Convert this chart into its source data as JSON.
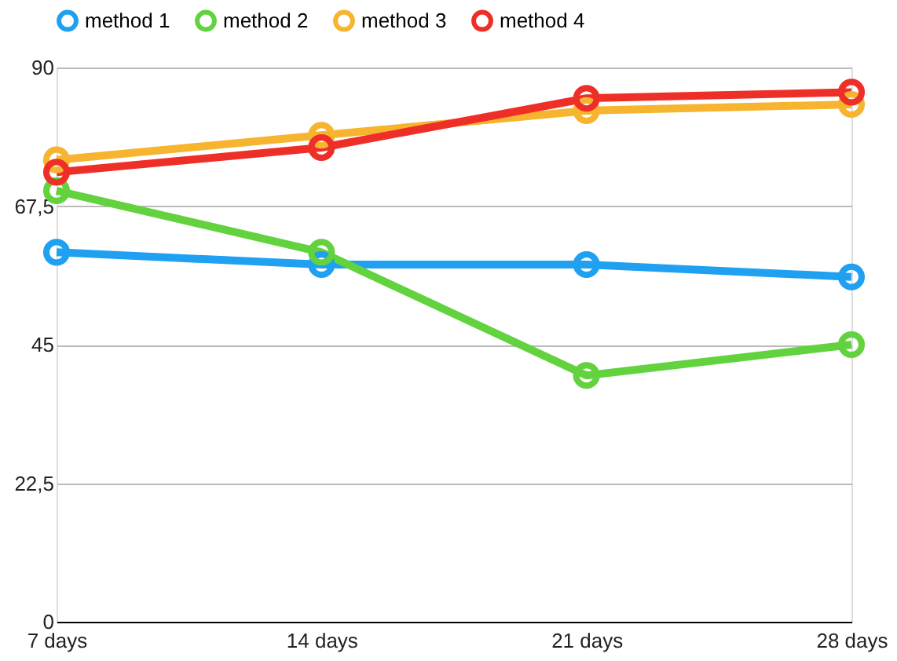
{
  "chart_data": {
    "type": "line",
    "categories": [
      "7 days",
      "14 days",
      "21 days",
      "28 days"
    ],
    "series": [
      {
        "name": "method 1",
        "color": "#1fa0f0",
        "values": [
          60,
          58,
          58,
          56
        ]
      },
      {
        "name": "method 2",
        "color": "#62d23e",
        "values": [
          70,
          60,
          40,
          45
        ]
      },
      {
        "name": "method 3",
        "color": "#f6b42f",
        "values": [
          75,
          79,
          83,
          84
        ]
      },
      {
        "name": "method 4",
        "color": "#ee2f28",
        "values": [
          73,
          77,
          85,
          86
        ]
      }
    ],
    "ylim": [
      0,
      90
    ],
    "yticks": [
      0,
      {
        "value": 22.5,
        "label": "22,5"
      },
      45,
      {
        "value": 67.5,
        "label": "67,5"
      },
      90
    ],
    "grid": "y",
    "legend": "top",
    "marker": "circle",
    "line_style": "solid"
  }
}
